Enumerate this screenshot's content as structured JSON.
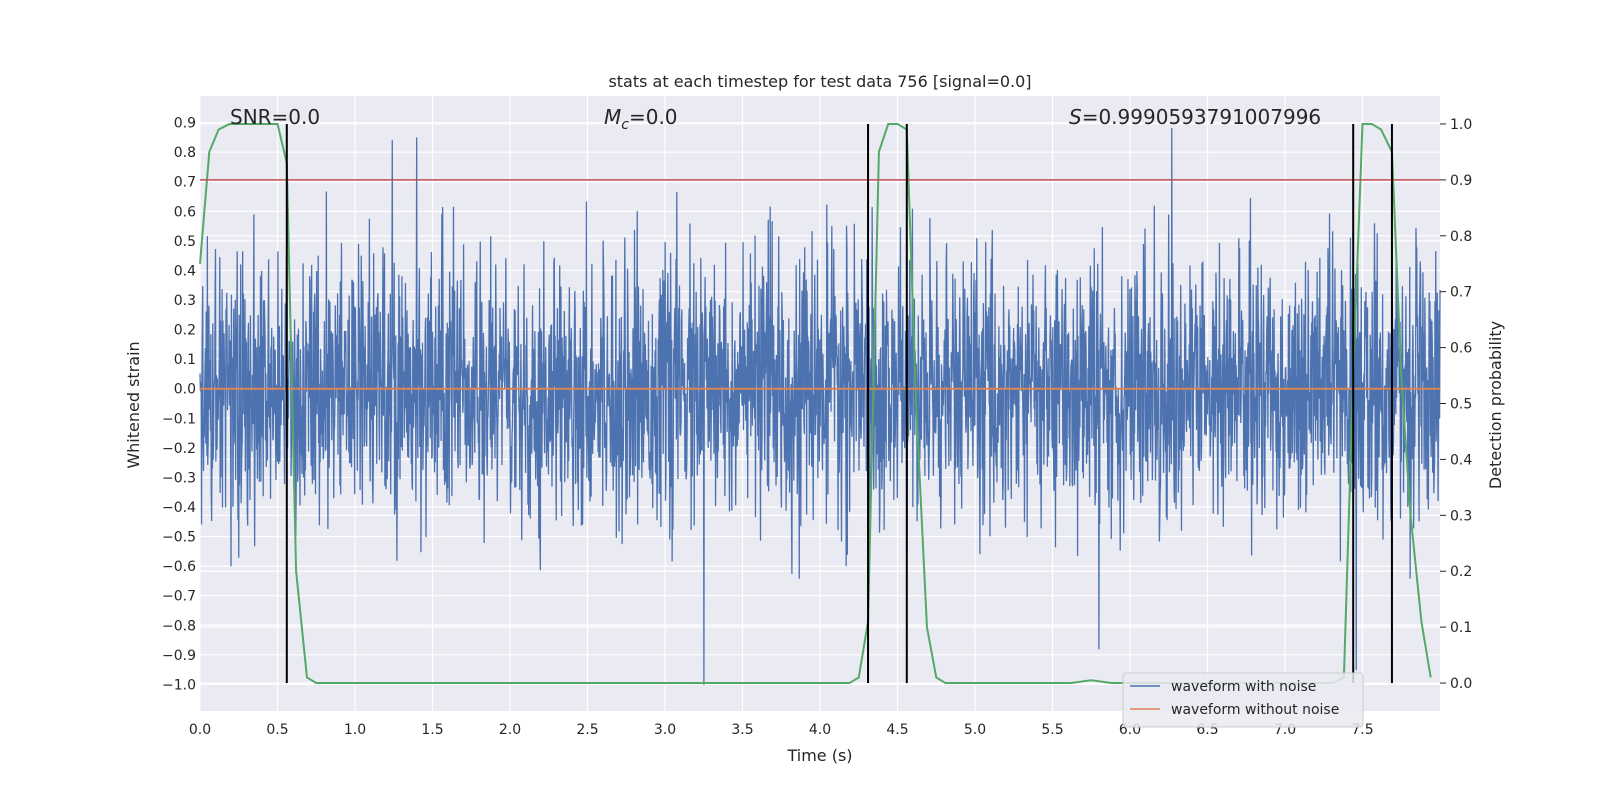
{
  "chart_data": {
    "type": "line",
    "title": "stats at each timestep for test data 756 [signal=0.0]",
    "xlabel": "Time (s)",
    "ylabel_left": "Whitened strain",
    "ylabel_right": "Detection probability",
    "xlim": [
      0.0,
      8.0
    ],
    "ylim_left": [
      -1.09,
      0.99
    ],
    "ylim_right": [
      -0.05,
      1.05
    ],
    "grid": true,
    "x_ticks": [
      "0.0",
      "0.5",
      "1.0",
      "1.5",
      "2.0",
      "2.5",
      "3.0",
      "3.5",
      "4.0",
      "4.5",
      "5.0",
      "5.5",
      "6.0",
      "6.5",
      "7.0",
      "7.5"
    ],
    "y_left_ticks": [
      "0.9",
      "0.8",
      "0.7",
      "0.6",
      "0.5",
      "0.4",
      "0.3",
      "0.2",
      "0.1",
      "0.0",
      "−0.1",
      "−0.2",
      "−0.3",
      "−0.4",
      "−0.5",
      "−0.6",
      "−0.7",
      "−0.8",
      "−0.9",
      "−1.0"
    ],
    "y_right_ticks": [
      "1.0",
      "0.9",
      "0.8",
      "0.7",
      "0.6",
      "0.5",
      "0.4",
      "0.3",
      "0.2",
      "0.1",
      "0.0"
    ],
    "annotations": {
      "snr": "SNR=0.0",
      "mc_symbol": "M",
      "mc_sub": "c",
      "mc_value": "=0.0",
      "s_symbol": "S",
      "s_value": "=0.9990593791007996"
    },
    "threshold_probability": 0.9,
    "detection_boundaries_s": [
      0.56,
      4.31,
      4.56,
      7.44,
      7.69
    ],
    "series": [
      {
        "name": "waveform with noise",
        "color": "#4c72b0",
        "noise_std": 0.22,
        "notable_extremes": [
          {
            "x": 1.24,
            "y": 0.84
          },
          {
            "x": 3.25,
            "y": -1.0
          },
          {
            "x": 5.8,
            "y": -0.88
          },
          {
            "x": 6.27,
            "y": 0.88
          }
        ]
      },
      {
        "name": "waveform without noise",
        "color": "#dd8452",
        "constant_value": 0.0
      },
      {
        "name": "detection probability",
        "color": "#55a868",
        "x": [
          0.0,
          0.06,
          0.12,
          0.19,
          0.25,
          0.31,
          0.38,
          0.44,
          0.5,
          0.56,
          0.62,
          0.69,
          0.75,
          1.5,
          2.5,
          3.5,
          4.0,
          4.12,
          4.19,
          4.25,
          4.31,
          4.38,
          4.44,
          4.5,
          4.56,
          4.62,
          4.69,
          4.75,
          4.81,
          4.88,
          5.0,
          5.5,
          5.62,
          5.75,
          5.88,
          6.0,
          7.0,
          7.31,
          7.38,
          7.44,
          7.5,
          7.56,
          7.62,
          7.69,
          7.75,
          7.81,
          7.88,
          7.94
        ],
        "y": [
          0.75,
          0.95,
          0.99,
          1.0,
          1.0,
          1.0,
          1.0,
          1.0,
          1.0,
          0.93,
          0.2,
          0.01,
          0.0,
          0.0,
          0.0,
          0.0,
          0.0,
          0.0,
          0.0,
          0.01,
          0.11,
          0.95,
          1.0,
          1.0,
          0.99,
          0.5,
          0.1,
          0.01,
          0.0,
          0.0,
          0.0,
          0.0,
          0.0,
          0.005,
          0.0,
          0.0,
          0.0,
          0.0,
          0.01,
          0.55,
          1.0,
          1.0,
          0.99,
          0.95,
          0.55,
          0.3,
          0.11,
          0.01
        ]
      }
    ]
  }
}
